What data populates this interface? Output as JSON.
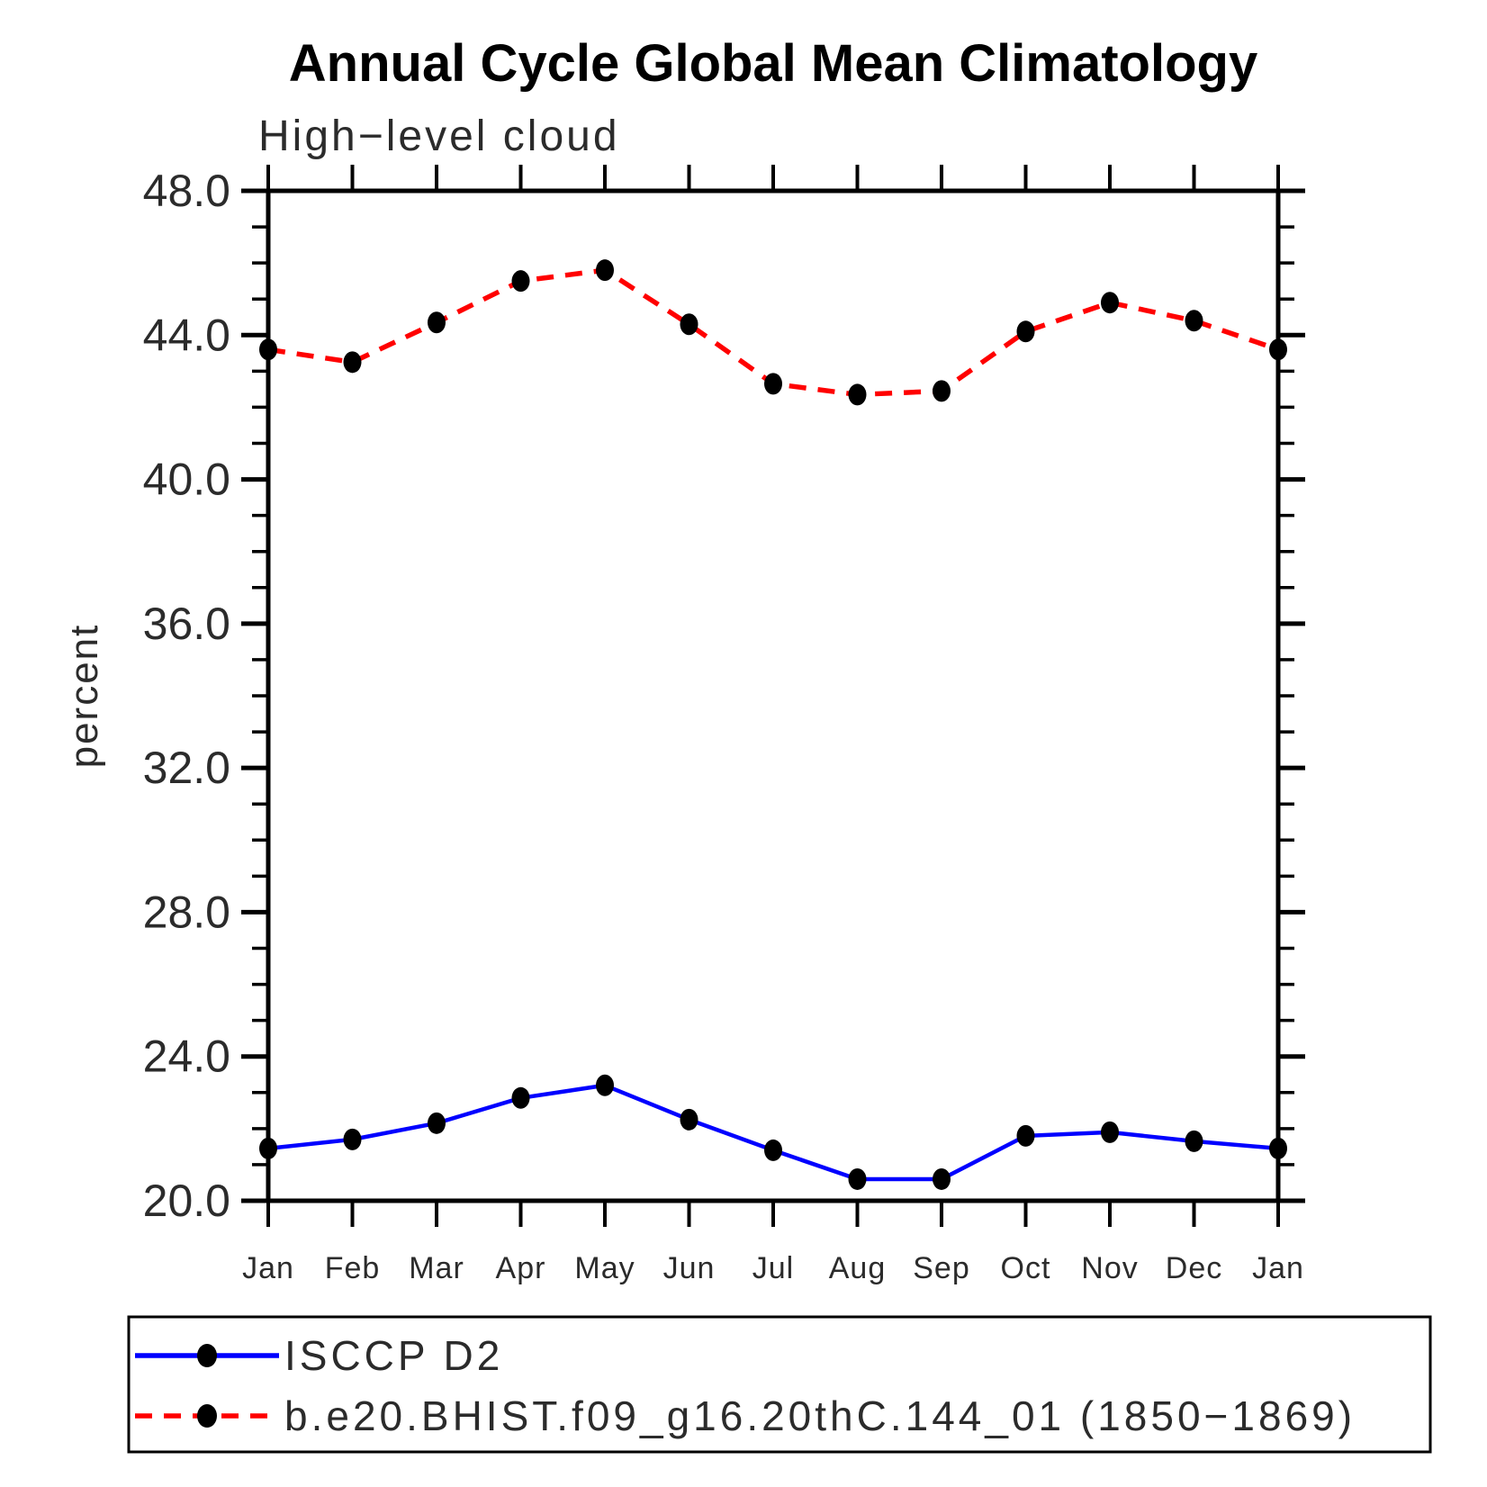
{
  "chart_data": {
    "type": "line",
    "title": "Annual Cycle Global Mean Climatology",
    "subtitle": "High−level cloud",
    "ylabel": "percent",
    "xlabel": "",
    "categories": [
      "Jan",
      "Feb",
      "Mar",
      "Apr",
      "May",
      "Jun",
      "Jul",
      "Aug",
      "Sep",
      "Oct",
      "Nov",
      "Dec",
      "Jan"
    ],
    "ylim": [
      20.0,
      48.0
    ],
    "ytick_major_labels": [
      "48.0",
      "44.0",
      "40.0",
      "36.0",
      "32.0",
      "28.0",
      "24.0",
      "20.0"
    ],
    "ytick_major_step": 4.0,
    "ytick_minor_step": 1.0,
    "grid": false,
    "legend_position": "bottom-left-box",
    "marker_color": "#000000",
    "series": [
      {
        "name": "ISCCP D2",
        "color": "#0000ff",
        "line_style": "solid",
        "marker": "filled-circle",
        "values": [
          21.45,
          21.7,
          22.15,
          22.85,
          23.2,
          22.25,
          21.4,
          20.6,
          20.6,
          21.8,
          21.9,
          21.65,
          21.45
        ]
      },
      {
        "name": "b.e20.BHIST.f09_g16.20thC.144_01 (1850−1869)",
        "color": "#ff0000",
        "line_style": "dashed",
        "marker": "filled-circle",
        "values": [
          43.6,
          43.25,
          44.35,
          45.5,
          45.8,
          44.3,
          42.65,
          42.35,
          42.45,
          44.1,
          44.9,
          44.4,
          43.6
        ]
      }
    ]
  }
}
